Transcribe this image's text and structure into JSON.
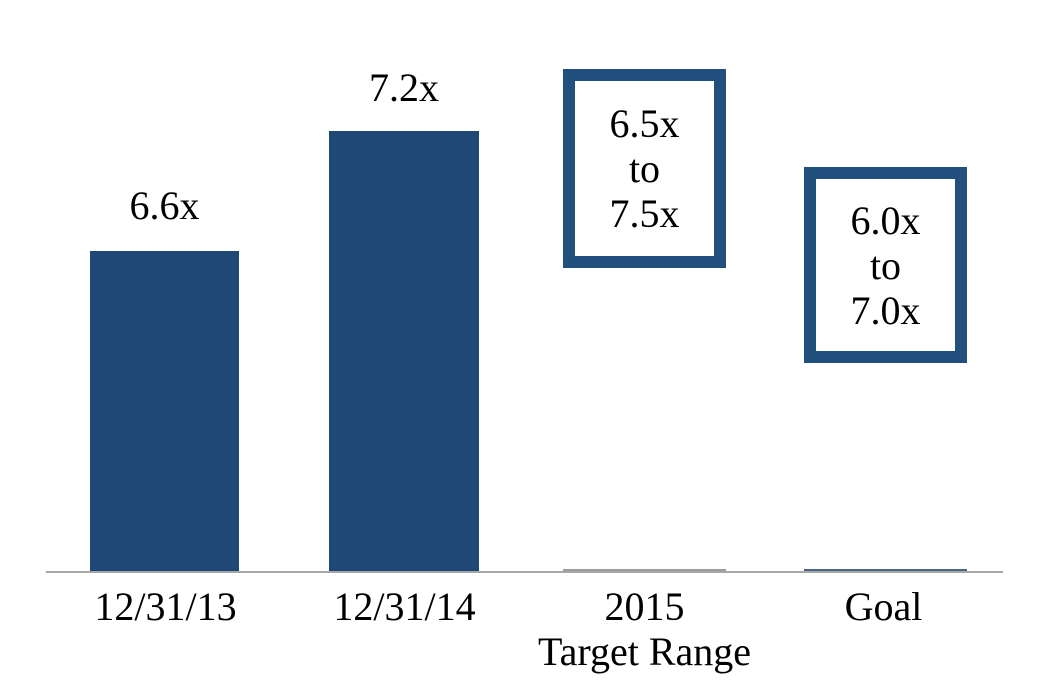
{
  "chart_data": {
    "type": "bar",
    "title": "",
    "xlabel": "",
    "ylabel": "",
    "categories": [
      "12/31/13",
      "12/31/14",
      "2015 Target Range",
      "Goal"
    ],
    "category_label_lines": [
      [
        "12/31/13"
      ],
      [
        "12/31/14"
      ],
      [
        "2015",
        "Target Range"
      ],
      [
        "Goal"
      ]
    ],
    "bars": [
      {
        "category": "12/31/13",
        "value": 6.6,
        "label": "6.6x"
      },
      {
        "category": "12/31/14",
        "value": 7.2,
        "label": "7.2x"
      }
    ],
    "range_boxes": [
      {
        "category": "2015 Target Range",
        "low": 6.5,
        "high": 7.5,
        "lines": [
          "6.5x",
          "to",
          "7.5x"
        ]
      },
      {
        "category": "Goal",
        "low": 6.0,
        "high": 7.0,
        "lines": [
          "6.0x",
          "to",
          "7.0x"
        ]
      }
    ],
    "axis": {
      "baseline_value": 5.0,
      "ylim": [
        5.0,
        7.9
      ],
      "gridlines": false,
      "y_axis_visible": false,
      "x_axis_visible": true
    },
    "legend": {
      "visible": false
    },
    "colors": {
      "bar_fill": "#1f4877",
      "range_box_border": "#21507e",
      "range_box_fill": "#ffffff",
      "axis_line": "#a6a6a6",
      "baseline_segment_2015": "#9b9b9b",
      "baseline_segment_goal": "#4a6480",
      "text": "#000000",
      "background": "#ffffff"
    }
  }
}
